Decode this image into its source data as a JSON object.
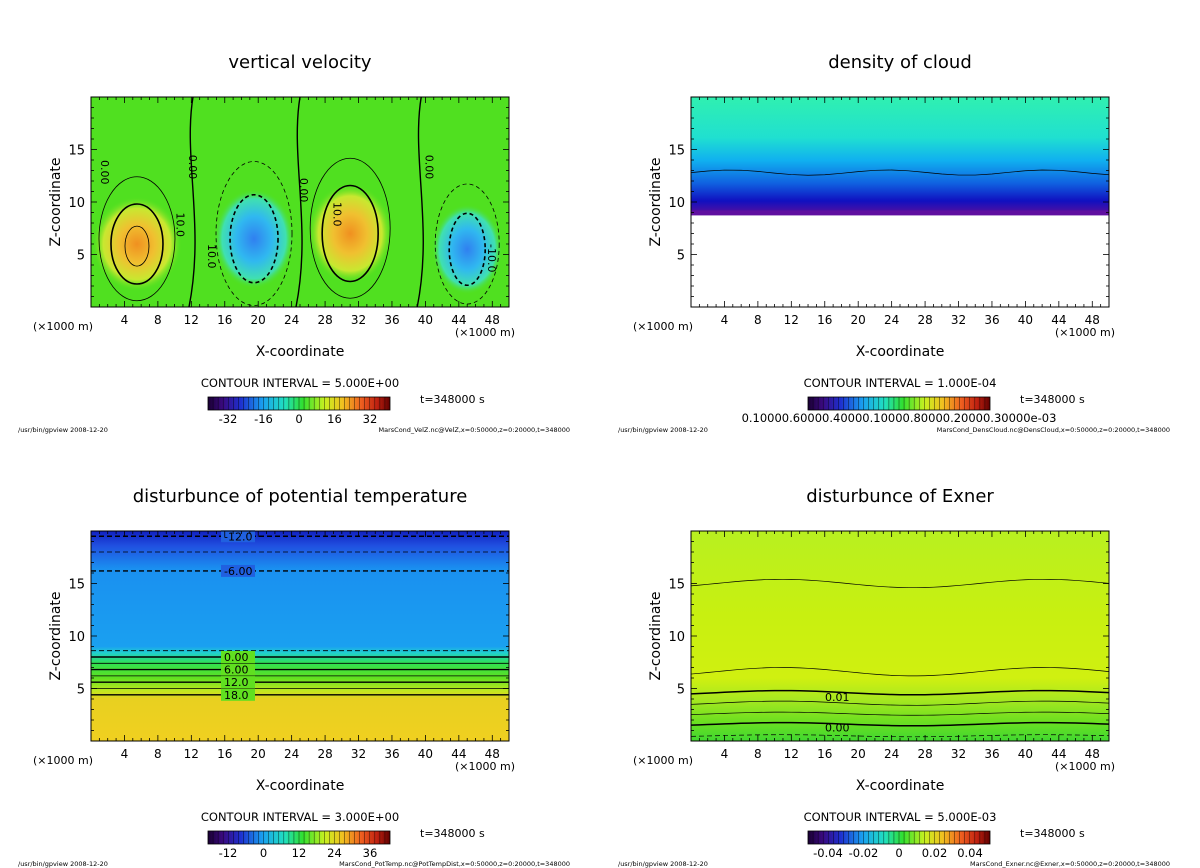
{
  "figure": {
    "x_unit_label": "(×1000 m)",
    "x_label": "X-coordinate",
    "y_label": "Z-coordinate",
    "time_label": "t=348000 s",
    "program_label": "/usr/bin/gpview  2008-12-20"
  },
  "chart_data": [
    {
      "type": "heatmap",
      "title": "vertical velocity",
      "xlabel": "X-coordinate",
      "ylabel": "Z-coordinate",
      "xlim": [
        0,
        50
      ],
      "ylim": [
        0,
        20
      ],
      "x_ticks": [
        4,
        8,
        12,
        16,
        20,
        24,
        28,
        32,
        36,
        40,
        44,
        48
      ],
      "y_ticks": [
        5,
        10,
        15
      ],
      "contour_interval": "CONTOUR INTERVAL = 5.000E+00",
      "colorbar_ticks": [
        "-32",
        "-16",
        "0",
        "16",
        "32"
      ],
      "contour_labels": [
        "0.00",
        "0.00",
        "0.00",
        "0.00",
        "10.0",
        "10.0",
        "10.0",
        "-10.0"
      ],
      "footer": "MarsCond_VelZ.nc@VelZ,x=0:50000,z=0:20000,t=348000"
    },
    {
      "type": "heatmap",
      "title": "density of cloud",
      "xlabel": "X-coordinate",
      "ylabel": "Z-coordinate",
      "xlim": [
        0,
        50
      ],
      "ylim": [
        0,
        20
      ],
      "x_ticks": [
        4,
        8,
        12,
        16,
        20,
        24,
        28,
        32,
        36,
        40,
        44,
        48
      ],
      "y_ticks": [
        5,
        10,
        15
      ],
      "contour_interval": "CONTOUR INTERVAL = 1.000E-04",
      "colorbar_ticks": [
        "0.10000.60000.40000.10000.80000.20000.30000e-03"
      ],
      "contour_labels": [],
      "footer": "MarsCond_DensCloud.nc@DensCloud,x=0:50000,z=0:20000,t=348000"
    },
    {
      "type": "heatmap",
      "title": "disturbunce of potential temperature",
      "xlabel": "X-coordinate",
      "ylabel": "Z-coordinate",
      "xlim": [
        0,
        50
      ],
      "ylim": [
        0,
        20
      ],
      "x_ticks": [
        4,
        8,
        12,
        16,
        20,
        24,
        28,
        32,
        36,
        40,
        44,
        48
      ],
      "y_ticks": [
        5,
        10,
        15
      ],
      "contour_interval": "CONTOUR INTERVAL = 3.000E+00",
      "colorbar_ticks": [
        "-12",
        "0",
        "12",
        "24",
        "36"
      ],
      "contour_labels": [
        "-12.0",
        "-6.00",
        "0.00",
        "6.00",
        "12.0",
        "18.0"
      ],
      "footer": "MarsCond_PotTemp.nc@PotTempDist,x=0:50000,z=0:20000,t=348000"
    },
    {
      "type": "heatmap",
      "title": "disturbunce of Exner",
      "xlabel": "X-coordinate",
      "ylabel": "Z-coordinate",
      "xlim": [
        0,
        50
      ],
      "ylim": [
        0,
        20
      ],
      "x_ticks": [
        4,
        8,
        12,
        16,
        20,
        24,
        28,
        32,
        36,
        40,
        44,
        48
      ],
      "y_ticks": [
        5,
        10,
        15
      ],
      "contour_interval": "CONTOUR INTERVAL = 5.000E-03",
      "colorbar_ticks": [
        "-0.04",
        "-0.02",
        "0",
        "0.02",
        "0.04"
      ],
      "contour_labels": [
        "0.01",
        "0.00"
      ],
      "footer": "MarsCond_Exner.nc@Exner,x=0:50000,z=0:20000,t=348000"
    }
  ]
}
